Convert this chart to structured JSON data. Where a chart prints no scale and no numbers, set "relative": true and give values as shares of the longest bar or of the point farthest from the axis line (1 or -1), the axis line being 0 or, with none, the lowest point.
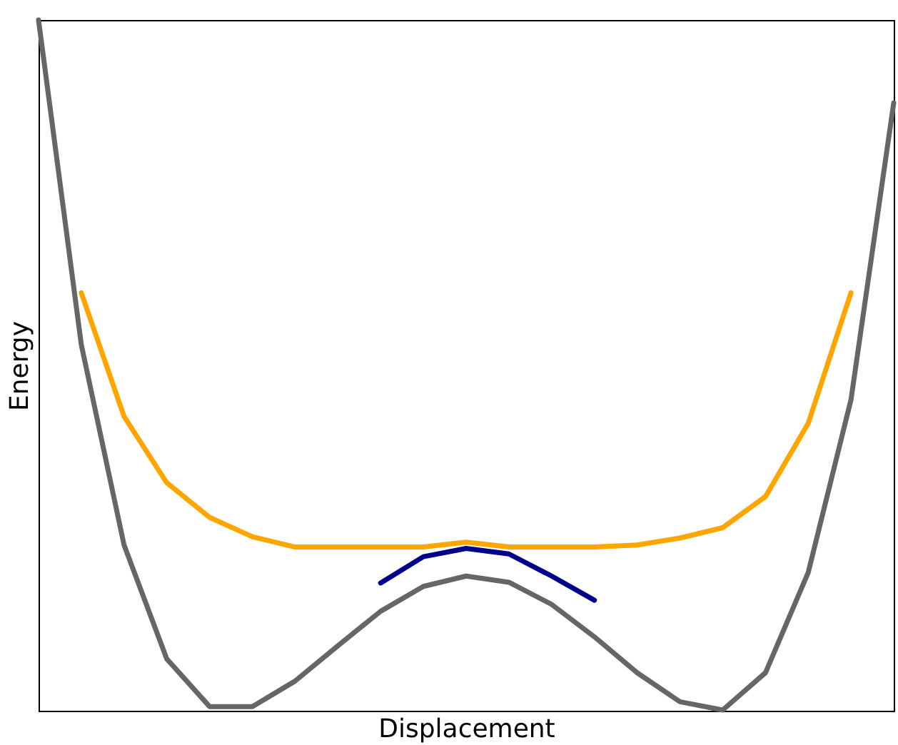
{
  "chart_data": {
    "type": "line",
    "relative": true,
    "xlabel": "Displacement",
    "ylabel": "Energy",
    "grid": false,
    "tick_labels": false,
    "marker": "none",
    "line_style": "solid",
    "categories": [
      null,
      null,
      null,
      null,
      null,
      null,
      null,
      null,
      null,
      null,
      null,
      null,
      null,
      null,
      null,
      null,
      null,
      null,
      null,
      null,
      null
    ],
    "series": [
      {
        "color": "#666666",
        "values": [
          1.0,
          0.53,
          0.24,
          0.075,
          0.006,
          0.006,
          0.043,
          0.094,
          0.144,
          0.18,
          0.195,
          0.186,
          0.154,
          0.107,
          0.055,
          0.013,
          0.001,
          0.055,
          0.2,
          0.45,
          0.88
        ]
      },
      {
        "color": "#ffa500",
        "values": [
          null,
          0.605,
          0.426,
          0.33,
          0.28,
          0.252,
          0.237,
          0.237,
          0.237,
          0.237,
          0.244,
          0.237,
          0.237,
          0.237,
          0.24,
          0.25,
          0.265,
          0.31,
          0.416,
          0.605,
          null
        ]
      },
      {
        "color": "#00008b",
        "values": [
          null,
          null,
          null,
          null,
          null,
          null,
          null,
          null,
          0.185,
          0.223,
          0.235,
          0.227,
          0.195,
          0.16,
          null,
          null,
          null,
          null,
          null,
          null,
          null
        ]
      }
    ]
  }
}
